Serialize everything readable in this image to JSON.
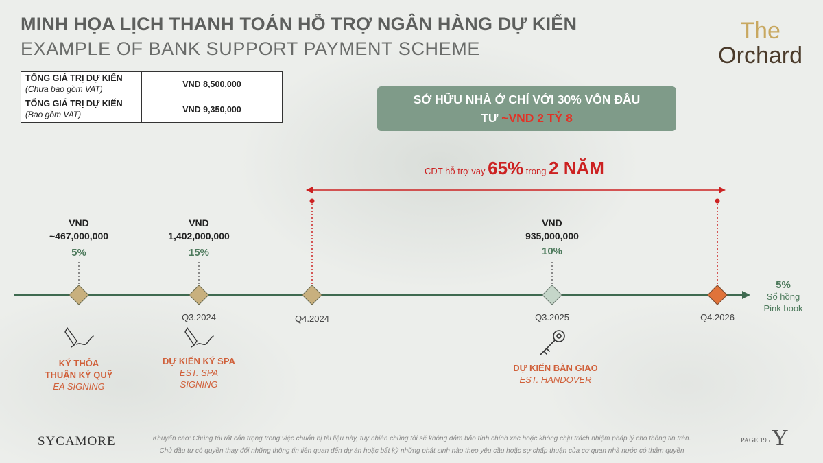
{
  "title_vn": "MINH HỌA LỊCH THANH TOÁN HỖ TRỢ NGÂN HÀNG DỰ KIẾN",
  "title_en": "EXAMPLE OF BANK SUPPORT PAYMENT SCHEME",
  "logo": {
    "line1": "The",
    "line2": "Orchard"
  },
  "price_table": [
    {
      "label": "TỔNG GIÁ TRỊ DỰ KIẾN",
      "note": "(Chưa bao gồm VAT)",
      "value": "VND 8,500,000"
    },
    {
      "label": "TỔNG GIÁ TRỊ DỰ KIẾN",
      "note": "(Bao gồm VAT)",
      "value": "VND 9,350,000"
    }
  ],
  "banner": {
    "line1": "SỞ HỮU NHÀ Ở CHỈ VỚI 30% VỐN ĐẦU",
    "line2_prefix": "TƯ ",
    "line2_highlight": "~VND 2 TỶ 8"
  },
  "support": {
    "pre": "CĐT hỗ trợ vay ",
    "pct": "65%",
    "mid": " trong ",
    "dur": "2 NĂM"
  },
  "payments": [
    {
      "currency": "VND",
      "amount": "~467,000,000",
      "percent": "5%"
    },
    {
      "currency": "VND",
      "amount": "1,402,000,000",
      "percent": "15%"
    },
    {
      "currency": "VND",
      "amount": "935,000,000",
      "percent": "10%"
    }
  ],
  "quarters": [
    "Q3.2024",
    "Q4.2024",
    "Q3.2025",
    "Q4.2026"
  ],
  "milestones": [
    {
      "vn1": "KÝ THỎA",
      "vn2": "THUẬN KÝ QUỸ",
      "en": "EA SIGNING"
    },
    {
      "vn": "DỰ KIẾN KÝ SPA",
      "en1": "EST. SPA",
      "en2": "SIGNING"
    },
    {
      "vn": "DỰ KIẾN BÀN GIAO",
      "en": "EST. HANDOVER"
    }
  ],
  "final": {
    "percent": "5%",
    "label_vn": "Sổ hồng",
    "label_en": "Pink book"
  },
  "footer": {
    "brand": "SYCAMORE",
    "disclaimer1": "Khuyến cáo: Chúng tôi rất cẩn trọng trong việc chuẩn bị tài liệu này, tuy nhiên chúng tôi sẽ không đảm bảo tính chính xác hoặc không chịu trách nhiệm pháp lý cho thông tin trên.",
    "disclaimer2": "Chủ đầu tư có quyền thay đổi những thông tin liên quan đến dự án hoặc bất kỳ những phát sinh nào theo yêu cầu hoặc sự chấp thuận của cơ quan nhà nước có thẩm quyền",
    "page": "PAGE 195",
    "mark": "Y"
  },
  "colors": {
    "timeline": "#3f6a50",
    "accent_red": "#cc2222",
    "diamond": "#c8b07e",
    "diamond_handover": "#c5d6c9",
    "diamond_final": "#e0733a",
    "milestone_text": "#d0603a",
    "banner_bg": "#7f9b89"
  },
  "icons": [
    "sign-pen-icon",
    "sign-pen-icon",
    "key-icon"
  ]
}
